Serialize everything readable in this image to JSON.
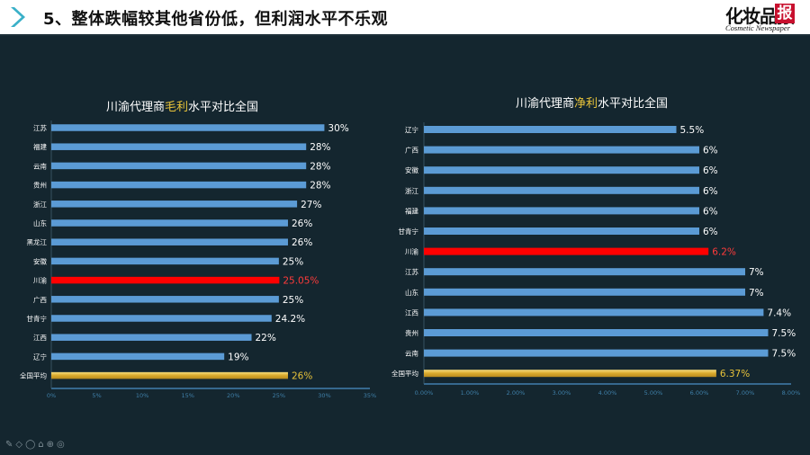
{
  "header": {
    "title": "5、整体跌幅较其他省份低，但利润水平不乐观",
    "logo_text": "化妆品报",
    "logo_subtext": "Cosmetic Newspaper"
  },
  "toolbar": {
    "icons": [
      "pen-icon",
      "eraser-icon",
      "pointer-icon",
      "highlighter-icon",
      "zoom-icon",
      "settings-icon"
    ]
  },
  "chart_data": [
    {
      "type": "bar",
      "orientation": "horizontal",
      "title_parts": [
        "川渝代理商",
        "毛利",
        "水平对比全国"
      ],
      "categories": [
        "江苏",
        "福建",
        "云南",
        "贵州",
        "浙江",
        "山东",
        "黑龙江",
        "安徽",
        "川渝",
        "广西",
        "甘青宁",
        "江西",
        "辽宁",
        "全国平均"
      ],
      "values": [
        30,
        28,
        28,
        28,
        27,
        26,
        26,
        25,
        25.05,
        25,
        24.2,
        22,
        19,
        26
      ],
      "data_labels": [
        "30%",
        "28%",
        "28%",
        "28%",
        "27%",
        "26%",
        "26%",
        "25%",
        "25.05%",
        "25%",
        "24.2%",
        "22%",
        "19%",
        "26%"
      ],
      "ticks": [
        "0%",
        "5%",
        "10%",
        "15%",
        "20%",
        "25%",
        "30%",
        "35%"
      ],
      "xlim": [
        0,
        35
      ],
      "highlight": {
        "川渝": "#ff0000",
        "全国平均": "#e3b43a"
      },
      "colors": {
        "bar": "#5b9bd5",
        "highlight_label": "#ff3b3b",
        "average_label": "#e8c33a"
      }
    },
    {
      "type": "bar",
      "orientation": "horizontal",
      "title_parts": [
        "川渝代理商",
        "净利",
        "水平对比全国"
      ],
      "categories": [
        "辽宁",
        "广西",
        "安徽",
        "浙江",
        "福建",
        "甘青宁",
        "川渝",
        "江苏",
        "山东",
        "江西",
        "贵州",
        "云南",
        "全国平均"
      ],
      "values": [
        5.5,
        6,
        6,
        6,
        6,
        6,
        6.2,
        7,
        7,
        7.4,
        7.5,
        7.5,
        6.37
      ],
      "data_labels": [
        "5.5%",
        "6%",
        "6%",
        "6%",
        "6%",
        "6%",
        "6.2%",
        "7%",
        "7%",
        "7.4%",
        "7.5%",
        "7.5%",
        "6.37%"
      ],
      "ticks": [
        "0.00%",
        "1.00%",
        "2.00%",
        "3.00%",
        "4.00%",
        "5.00%",
        "6.00%",
        "7.00%",
        "8.00%"
      ],
      "xlim": [
        0,
        8
      ],
      "highlight": {
        "川渝": "#ff0000",
        "全国平均": "#e3b43a"
      },
      "colors": {
        "bar": "#5b9bd5",
        "highlight_label": "#ff3b3b",
        "average_label": "#e8c33a"
      }
    }
  ]
}
